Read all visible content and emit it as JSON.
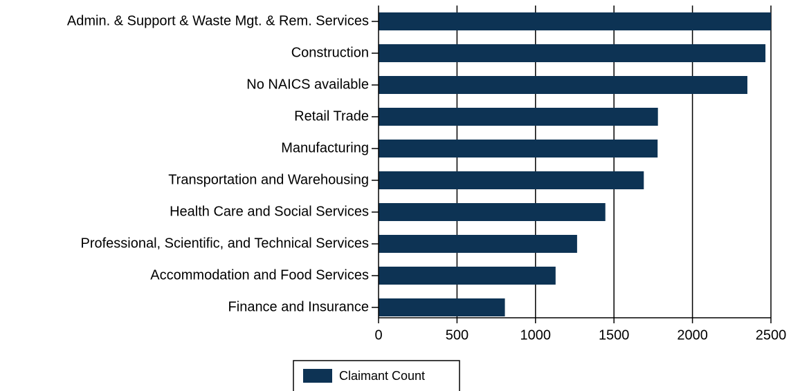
{
  "chart_data": {
    "type": "bar",
    "orientation": "horizontal",
    "categories": [
      "Admin. & Support & Waste Mgt. & Rem. Services",
      "Construction",
      "No NAICS available",
      "Retail Trade",
      "Manufacturing",
      "Transportation and Warehousing",
      "Health Care and Social Services",
      "Professional, Scientific, and Technical Services",
      "Accommodation and Food Services",
      "Finance and Insurance"
    ],
    "series": [
      {
        "name": "Claimant Count",
        "color": "#0d3354",
        "values": [
          2505,
          2465,
          2350,
          1780,
          1778,
          1690,
          1445,
          1265,
          1128,
          805
        ]
      }
    ],
    "xlim": [
      0,
      2500
    ],
    "x_ticks": [
      0,
      500,
      1000,
      1500,
      2000,
      2500
    ],
    "x_tick_labels": [
      "0",
      "500",
      "1000",
      "1500",
      "2000",
      "2500"
    ],
    "grid": "vertical",
    "legend_placement": "bottom-center"
  }
}
